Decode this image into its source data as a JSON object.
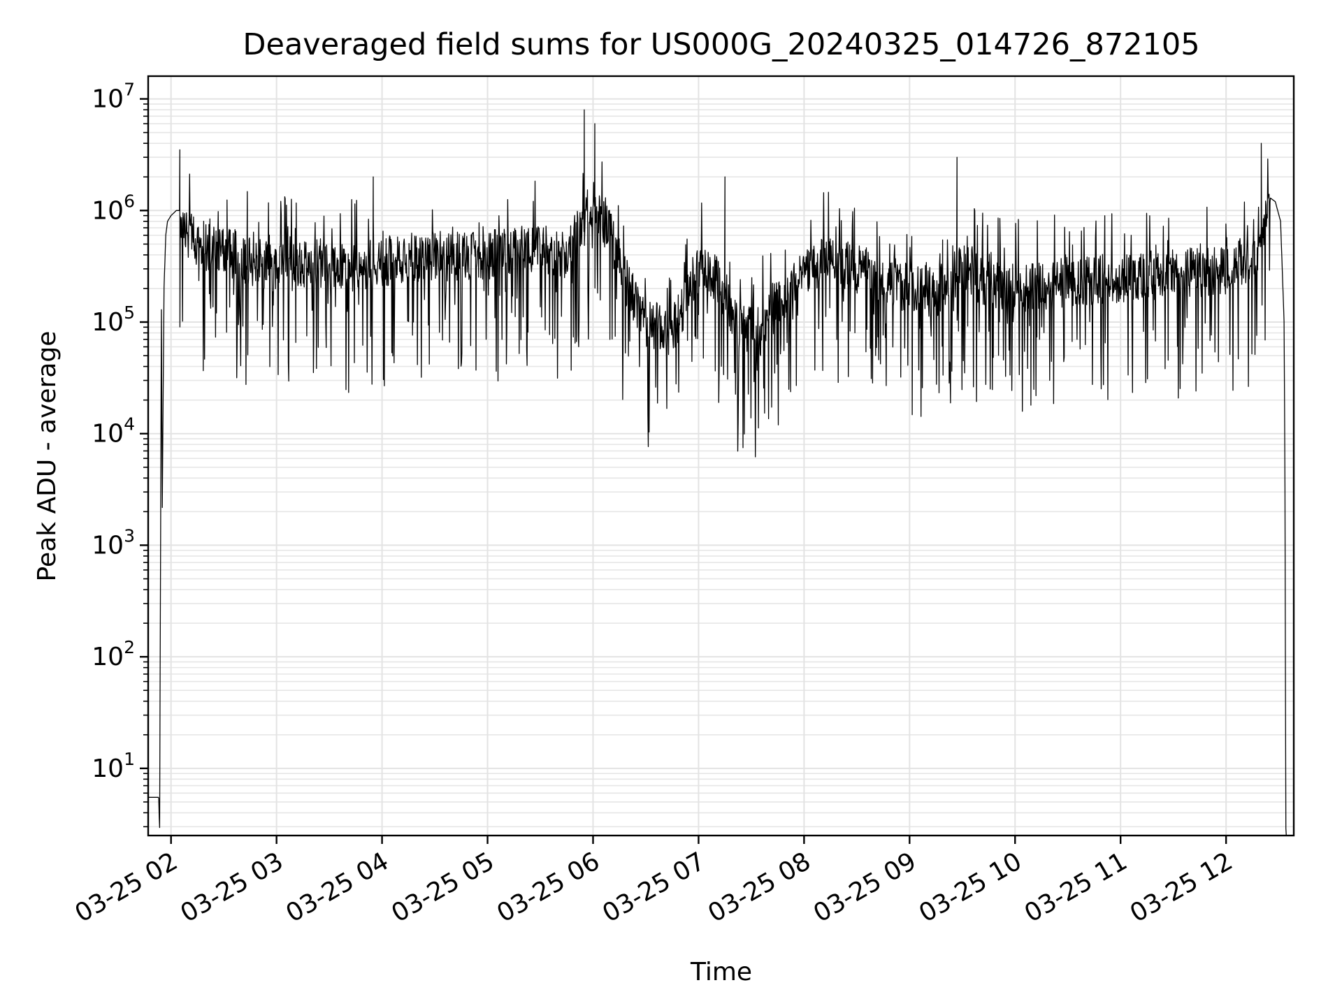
{
  "chart_data": {
    "type": "line",
    "title": "Deaveraged field sums for US000G_20240325_014726_872105",
    "xlabel": "Time",
    "ylabel": "Peak ADU - average",
    "yscale": "log",
    "ylim": [
      2.5,
      16000000
    ],
    "xlim": [
      "2024-03-25T01:47:00",
      "2024-03-25T12:38:30"
    ],
    "grid": true,
    "x_ticks": [
      {
        "value": "2024-03-25T02:00:00",
        "label": "03-25 02"
      },
      {
        "value": "2024-03-25T03:00:00",
        "label": "03-25 03"
      },
      {
        "value": "2024-03-25T04:00:00",
        "label": "03-25 04"
      },
      {
        "value": "2024-03-25T05:00:00",
        "label": "03-25 05"
      },
      {
        "value": "2024-03-25T06:00:00",
        "label": "03-25 06"
      },
      {
        "value": "2024-03-25T07:00:00",
        "label": "03-25 07"
      },
      {
        "value": "2024-03-25T08:00:00",
        "label": "03-25 08"
      },
      {
        "value": "2024-03-25T09:00:00",
        "label": "03-25 09"
      },
      {
        "value": "2024-03-25T10:00:00",
        "label": "03-25 10"
      },
      {
        "value": "2024-03-25T11:00:00",
        "label": "03-25 11"
      },
      {
        "value": "2024-03-25T12:00:00",
        "label": "03-25 12"
      }
    ],
    "y_ticks": [
      {
        "value": 10,
        "base": "10",
        "exp": "1"
      },
      {
        "value": 100,
        "base": "10",
        "exp": "2"
      },
      {
        "value": 1000,
        "base": "10",
        "exp": "3"
      },
      {
        "value": 10000,
        "base": "10",
        "exp": "4"
      },
      {
        "value": 100000,
        "base": "10",
        "exp": "5"
      },
      {
        "value": 1000000,
        "base": "10",
        "exp": "6"
      },
      {
        "value": 10000000,
        "base": "10",
        "exp": "7"
      }
    ],
    "colors": {
      "line": "#000000",
      "grid": "#e3e3e3",
      "frame": "#000000"
    },
    "series": [
      {
        "x": [
          "2024-03-25T01:48:00",
          "2024-03-25T01:52:00",
          "2024-03-25T01:53:00",
          "2024-03-25T01:53:30",
          "2024-03-25T01:54:30",
          "2024-03-25T01:55:00",
          "2024-03-25T01:56:00",
          "2024-03-25T01:57:00",
          "2024-03-25T01:58:00",
          "2024-03-25T02:00:00",
          "2024-03-25T02:03:00",
          "2024-03-25T02:05:00",
          "2024-03-25T02:06:00",
          "2024-03-25T02:07:00",
          "2024-03-25T02:09:00",
          "2024-03-25T02:15:00",
          "2024-03-25T02:30:00",
          "2024-03-25T02:45:00",
          "2024-03-25T03:00:00",
          "2024-03-25T03:15:00",
          "2024-03-25T03:30:00",
          "2024-03-25T03:45:00",
          "2024-03-25T04:00:00",
          "2024-03-25T04:15:00",
          "2024-03-25T04:30:00",
          "2024-03-25T04:45:00",
          "2024-03-25T05:00:00",
          "2024-03-25T05:15:00",
          "2024-03-25T05:30:00",
          "2024-03-25T05:45:00",
          "2024-03-25T05:55:00",
          "2024-03-25T06:00:00",
          "2024-03-25T06:03:00",
          "2024-03-25T06:10:00",
          "2024-03-25T06:20:00",
          "2024-03-25T06:30:00",
          "2024-03-25T06:45:00",
          "2024-03-25T07:00:00",
          "2024-03-25T07:10:00",
          "2024-03-25T07:20:00",
          "2024-03-25T07:35:00",
          "2024-03-25T07:45:00",
          "2024-03-25T08:00:00",
          "2024-03-25T08:15:00",
          "2024-03-25T08:30:00",
          "2024-03-25T08:45:00",
          "2024-03-25T09:00:00",
          "2024-03-25T09:15:00",
          "2024-03-25T09:30:00",
          "2024-03-25T09:45:00",
          "2024-03-25T10:00:00",
          "2024-03-25T10:15:00",
          "2024-03-25T10:30:00",
          "2024-03-25T10:45:00",
          "2024-03-25T11:00:00",
          "2024-03-25T11:15:00",
          "2024-03-25T11:30:00",
          "2024-03-25T11:45:00",
          "2024-03-25T12:00:00",
          "2024-03-25T12:10:00",
          "2024-03-25T12:18:00",
          "2024-03-25T12:22:00",
          "2024-03-25T12:25:00",
          "2024-03-25T12:28:00",
          "2024-03-25T12:31:00",
          "2024-03-25T12:33:00",
          "2024-03-25T12:33:30",
          "2024-03-25T12:34:00"
        ],
        "y": [
          5.5,
          5.5,
          5.5,
          2.5,
          150000,
          2000,
          200000,
          600000,
          800000,
          900000,
          1000000,
          1000000,
          900000,
          700000,
          600000,
          500000,
          450000,
          350000,
          300000,
          320000,
          350000,
          300000,
          350000,
          380000,
          400000,
          380000,
          400000,
          420000,
          450000,
          400000,
          800000,
          1200000,
          1000000,
          600000,
          200000,
          100000,
          80000,
          300000,
          250000,
          100000,
          80000,
          150000,
          300000,
          350000,
          300000,
          250000,
          200000,
          180000,
          300000,
          220000,
          200000,
          210000,
          230000,
          240000,
          250000,
          260000,
          270000,
          280000,
          300000,
          350000,
          400000,
          800000,
          1300000,
          1200000,
          800000,
          100000,
          3000,
          2.5
        ],
        "spikes": [
          {
            "x": "2024-03-25T02:05:00",
            "y": 3500000
          },
          {
            "x": "2024-03-25T03:55:00",
            "y": 2000000
          },
          {
            "x": "2024-03-25T05:55:00",
            "y": 8000000
          },
          {
            "x": "2024-03-25T06:01:00",
            "y": 6000000
          },
          {
            "x": "2024-03-25T07:15:00",
            "y": 2000000
          },
          {
            "x": "2024-03-25T09:27:00",
            "y": 3000000
          },
          {
            "x": "2024-03-25T10:09:00",
            "y": 18000
          },
          {
            "x": "2024-03-25T12:20:00",
            "y": 4000000
          }
        ]
      }
    ]
  }
}
